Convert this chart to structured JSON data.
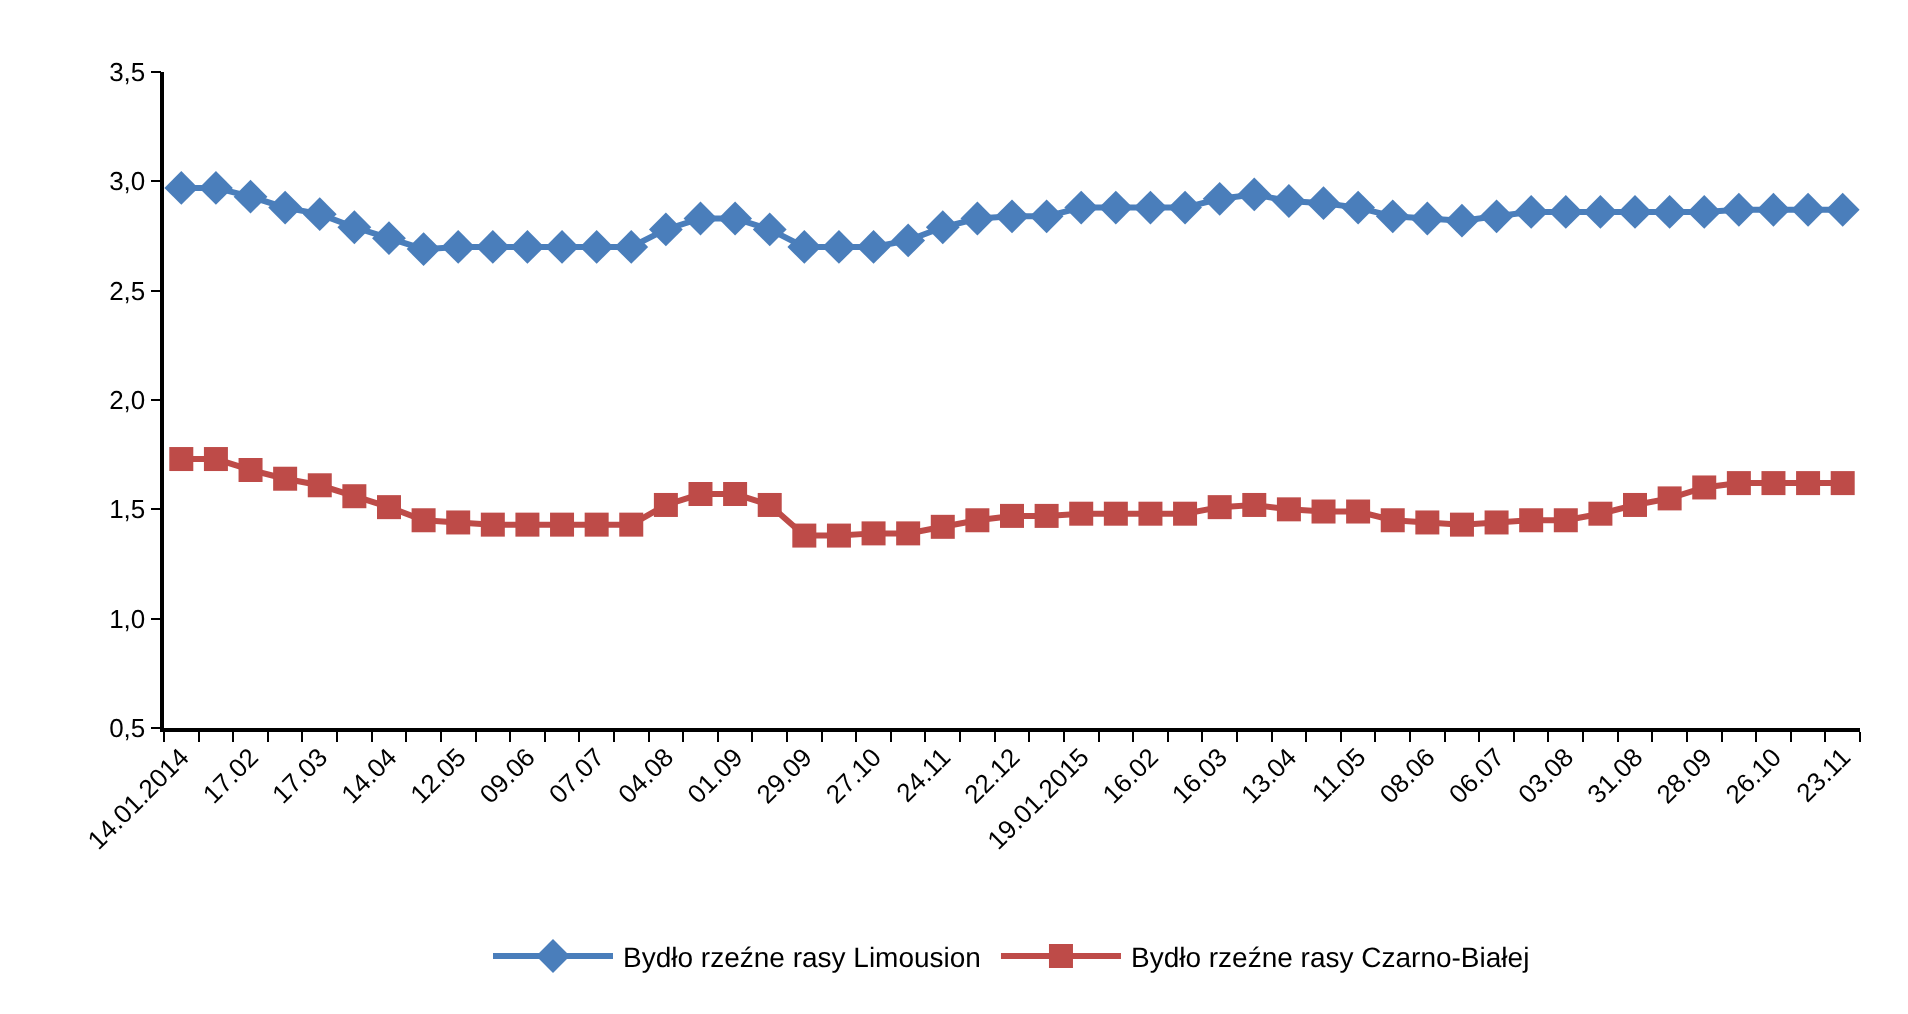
{
  "chart_data": {
    "type": "line",
    "categories": [
      "14.01.2014",
      null,
      "17.02",
      null,
      "17.03",
      null,
      "14.04",
      null,
      "12.05",
      null,
      "09.06",
      null,
      "07.07",
      null,
      "04.08",
      null,
      "01.09",
      null,
      "29.09",
      null,
      "27.10",
      null,
      "24.11",
      null,
      "22.12",
      null,
      "19.01.2015",
      null,
      "16.02",
      null,
      "16.03",
      null,
      "13.04",
      null,
      "11.05",
      null,
      "08.06",
      null,
      "06.07",
      null,
      "03.08",
      null,
      "31.08",
      null,
      "28.09",
      null,
      "26.10",
      null,
      "23.11"
    ],
    "series": [
      {
        "name": "Bydło rzeźne rasy Limousion",
        "color": "#4a7ebb",
        "marker": "diamond",
        "values": [
          2.97,
          2.97,
          2.93,
          2.88,
          2.85,
          2.79,
          2.74,
          2.69,
          2.7,
          2.7,
          2.7,
          2.7,
          2.7,
          2.7,
          2.78,
          2.83,
          2.83,
          2.78,
          2.7,
          2.7,
          2.7,
          2.73,
          2.79,
          2.83,
          2.84,
          2.84,
          2.88,
          2.88,
          2.88,
          2.88,
          2.92,
          2.94,
          2.91,
          2.9,
          2.88,
          2.84,
          2.83,
          2.82,
          2.84,
          2.86,
          2.86,
          2.86,
          2.86,
          2.86,
          2.86,
          2.87,
          2.87,
          2.87,
          2.87
        ]
      },
      {
        "name": "Bydło rzeźne rasy Czarno-Białej",
        "color": "#be4b48",
        "marker": "square",
        "values": [
          1.73,
          1.73,
          1.68,
          1.64,
          1.61,
          1.56,
          1.51,
          1.45,
          1.44,
          1.43,
          1.43,
          1.43,
          1.43,
          1.43,
          1.52,
          1.57,
          1.57,
          1.52,
          1.38,
          1.38,
          1.39,
          1.39,
          1.42,
          1.45,
          1.47,
          1.47,
          1.48,
          1.48,
          1.48,
          1.48,
          1.51,
          1.52,
          1.5,
          1.49,
          1.49,
          1.45,
          1.44,
          1.43,
          1.44,
          1.45,
          1.45,
          1.48,
          1.52,
          1.55,
          1.6,
          1.62,
          1.62,
          1.62,
          1.62
        ]
      }
    ],
    "ylim": [
      0.5,
      3.5
    ],
    "yticks": [
      {
        "value": 0.5,
        "label": "0,5"
      },
      {
        "value": 1.0,
        "label": "1,0"
      },
      {
        "value": 1.5,
        "label": "1,5"
      },
      {
        "value": 2.0,
        "label": "2,0"
      },
      {
        "value": 2.5,
        "label": "2,5"
      },
      {
        "value": 3.0,
        "label": "3,0"
      },
      {
        "value": 3.5,
        "label": "3,5"
      }
    ],
    "grid": false,
    "legend": "bottom",
    "line_style": "solid"
  }
}
